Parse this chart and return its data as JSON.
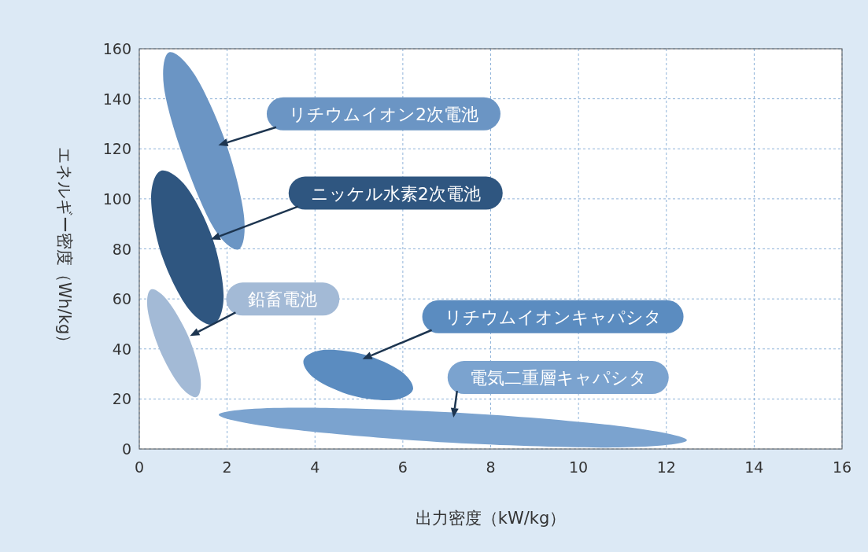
{
  "chart_data": {
    "type": "area",
    "xlabel": "出力密度（kW/kg）",
    "ylabel": "エネルギー密度（Wh/kg）",
    "xlim": [
      0,
      16
    ],
    "ylim": [
      0,
      160
    ],
    "xticks": [
      0,
      2,
      4,
      6,
      8,
      10,
      12,
      14,
      16
    ],
    "yticks": [
      0,
      20,
      40,
      60,
      80,
      100,
      120,
      140,
      160
    ],
    "grid": true,
    "series": [
      {
        "name": "リチウムイオン2次電池",
        "color": "#6b95c4",
        "x": [
          2.26,
          2.38,
          1.97,
          1.27,
          0.68,
          0.56,
          0.97,
          1.67
        ],
        "values": [
          79.8,
          93.7,
          122.4,
          149.4,
          158.6,
          144.9,
          118.3,
          89.1
        ]
      },
      {
        "name": "ニッケル水素2次電池",
        "color": "#2f5680",
        "x": [
          1.69,
          1.92,
          1.67,
          1.08,
          0.49,
          0.27,
          0.52,
          1.11
        ],
        "values": [
          49.8,
          61.4,
          84.0,
          104.6,
          111.2,
          99.6,
          77.0,
          56.3
        ]
      },
      {
        "name": "鉛畜電池",
        "color": "#a3bad6",
        "x": [
          1.31,
          1.39,
          1.12,
          0.65,
          0.27,
          0.19,
          0.46,
          0.92
        ],
        "values": [
          20.8,
          28.9,
          44.9,
          59.2,
          63.8,
          55.7,
          39.8,
          25.4
        ]
      },
      {
        "name": "リチウムイオンキャパシタ",
        "color": "#5b8cc0",
        "x": [
          6.23,
          5.95,
          5.11,
          4.19,
          3.74,
          4.01,
          4.86,
          5.77
        ],
        "values": [
          23.7,
          31.2,
          37.8,
          39.6,
          35.5,
          28.0,
          21.3,
          19.6
        ]
      },
      {
        "name": "電気二重層キャパシタ",
        "color": "#7ba3cf",
        "x": [
          12.47,
          10.91,
          7.16,
          3.39,
          1.81,
          3.37,
          7.12,
          10.9
        ],
        "values": [
          3.5,
          9.2,
          14.6,
          16.5,
          13.7,
          8.0,
          2.5,
          0.6
        ]
      }
    ]
  }
}
